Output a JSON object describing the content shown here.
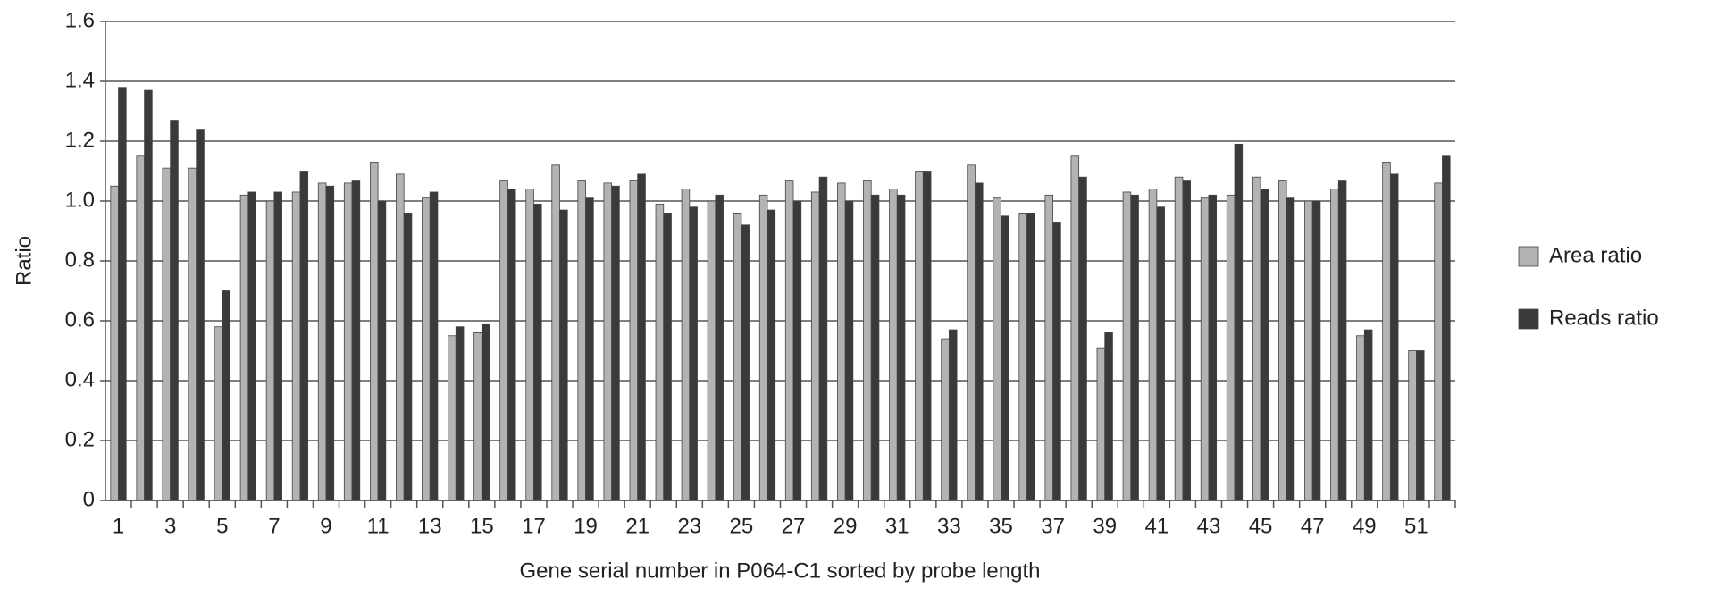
{
  "chart_data": {
    "type": "bar",
    "y_label": "Ratio",
    "x_label": "Gene serial number in P064-C1 sorted by probe length",
    "categories": [
      1,
      null,
      3,
      null,
      5,
      null,
      7,
      null,
      9,
      null,
      11,
      null,
      13,
      null,
      15,
      null,
      17,
      null,
      19,
      null,
      21,
      null,
      23,
      null,
      25,
      null,
      27,
      null,
      29,
      null,
      31,
      null,
      33,
      null,
      35,
      null,
      37,
      null,
      39,
      null,
      41,
      null,
      43,
      null,
      45,
      null,
      47,
      null,
      49,
      null,
      51,
      null
    ],
    "series": [
      {
        "name": "Area ratio",
        "color": "#b3b3b3",
        "values": [
          1.05,
          1.15,
          1.11,
          1.11,
          0.58,
          1.02,
          1.0,
          1.03,
          1.06,
          1.06,
          1.13,
          1.09,
          1.01,
          0.55,
          0.56,
          1.07,
          1.04,
          1.12,
          1.07,
          1.06,
          1.07,
          0.99,
          1.04,
          1.0,
          0.96,
          1.02,
          1.07,
          1.03,
          1.06,
          1.07,
          1.04,
          1.1,
          0.54,
          1.12,
          1.01,
          0.96,
          1.02,
          1.15,
          0.51,
          1.03,
          1.04,
          1.08,
          1.01,
          1.02,
          1.08,
          1.07,
          1.0,
          1.04,
          0.55,
          1.13,
          0.5,
          1.06
        ]
      },
      {
        "name": "Reads ratio",
        "color": "#3a3a3a",
        "values": [
          1.38,
          1.37,
          1.27,
          1.24,
          0.7,
          1.03,
          1.03,
          1.1,
          1.05,
          1.07,
          1.0,
          0.96,
          1.03,
          0.58,
          0.59,
          1.04,
          0.99,
          0.97,
          1.01,
          1.05,
          1.09,
          0.96,
          0.98,
          1.02,
          0.92,
          0.97,
          1.0,
          1.08,
          1.0,
          1.02,
          1.02,
          1.1,
          0.57,
          1.06,
          0.95,
          0.96,
          0.93,
          1.08,
          0.56,
          1.02,
          0.98,
          1.07,
          1.02,
          1.19,
          1.04,
          1.01,
          1.0,
          1.07,
          0.57,
          1.09,
          0.5,
          1.15
        ]
      }
    ],
    "ylim": [
      0,
      1.6
    ],
    "yticks": [
      0,
      0.2,
      0.4,
      0.6,
      0.8,
      {
        "value": 1,
        "label": "1.0"
      },
      1.2,
      1.4,
      1.6
    ],
    "grid": true,
    "legend": "right"
  }
}
